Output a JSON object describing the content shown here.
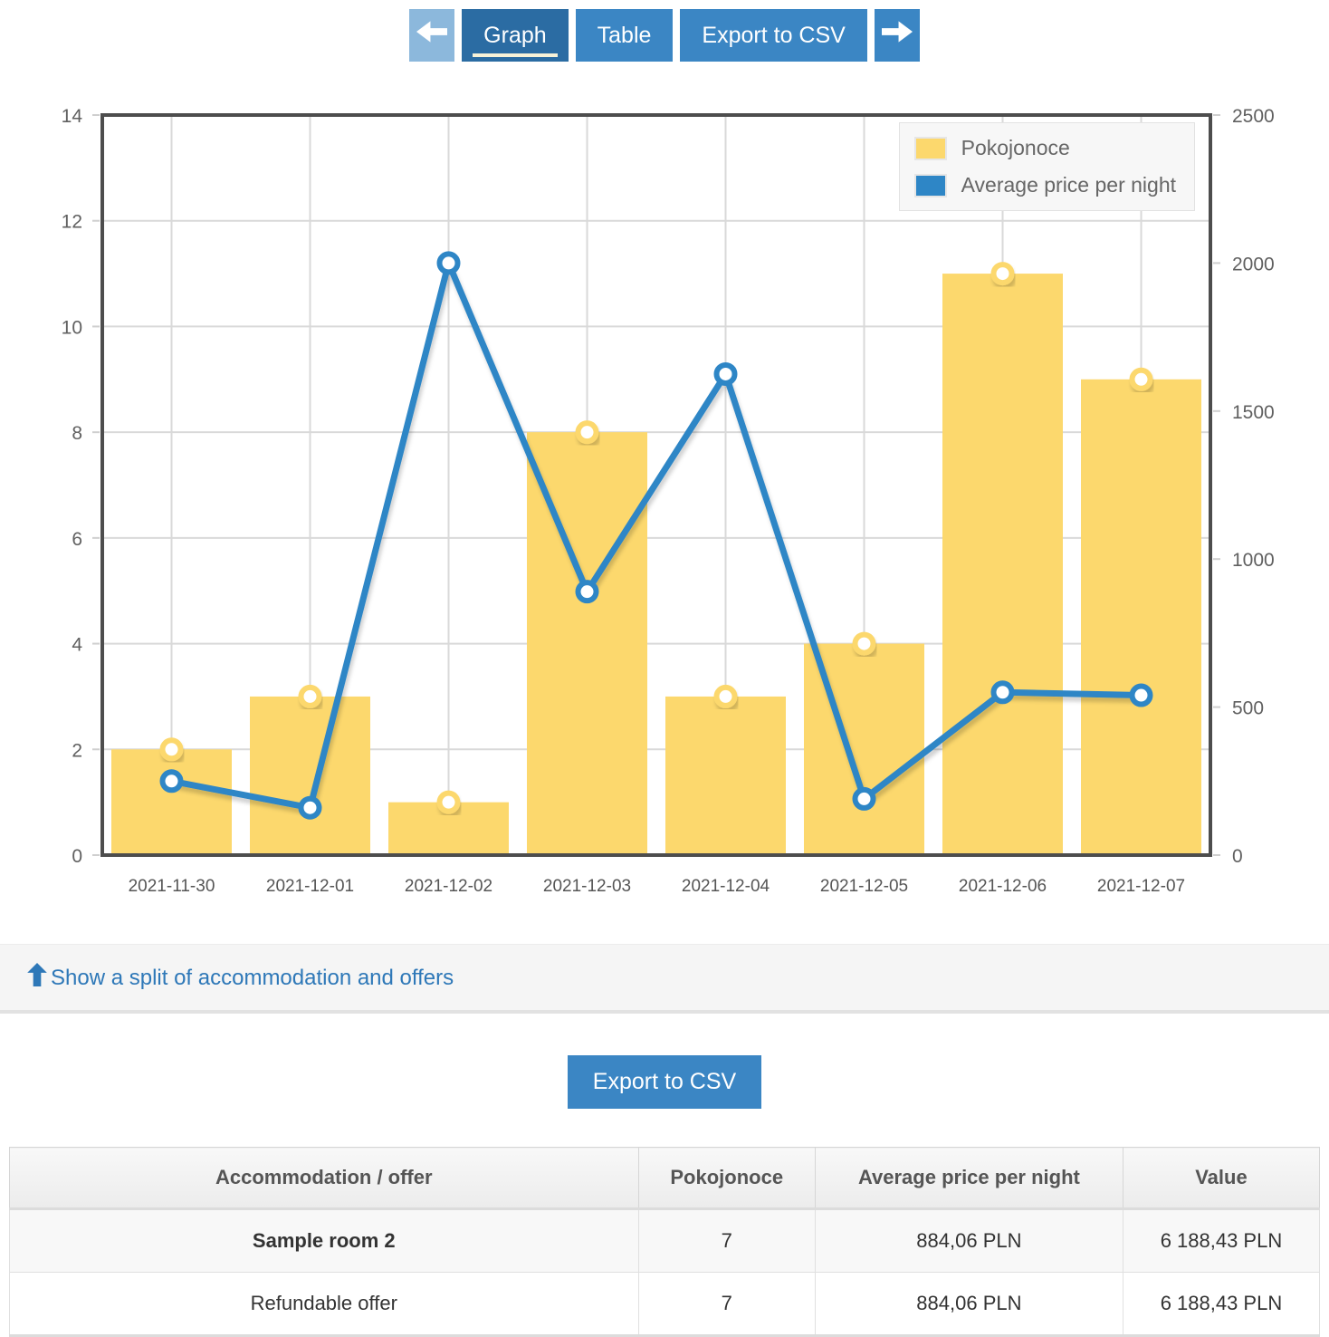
{
  "toolbar": {
    "prev": "left-arrow",
    "graph_label": "Graph",
    "table_label": "Table",
    "export_label": "Export to CSV",
    "next": "right-arrow"
  },
  "chart_data": {
    "type": "bar",
    "subtype": "bar+line combo, dual y-axes",
    "categories": [
      "2021-11-30",
      "2021-12-01",
      "2021-12-02",
      "2021-12-03",
      "2021-12-04",
      "2021-12-05",
      "2021-12-06",
      "2021-12-07"
    ],
    "series": [
      {
        "name": "Pokojonoce",
        "type": "bar",
        "axis": "left",
        "color": "#fcd86d",
        "values": [
          2,
          3,
          1,
          8,
          3,
          4,
          11,
          9
        ]
      },
      {
        "name": "Average price per night",
        "type": "line",
        "axis": "right",
        "color": "#2e86c6",
        "values": [
          250,
          160,
          2000,
          890,
          1625,
          190,
          550,
          540
        ]
      }
    ],
    "left_axis": {
      "min": 0,
      "max": 14,
      "step": 2,
      "ticks": [
        "0",
        "2",
        "4",
        "6",
        "8",
        "10",
        "12",
        "14"
      ]
    },
    "right_axis": {
      "min": 0,
      "max": 2500,
      "step": 500,
      "ticks": [
        "0",
        "500",
        "1000",
        "1500",
        "2000",
        "2500"
      ]
    },
    "grid": true,
    "legend_position": "top-right",
    "title": "",
    "xlabel": "",
    "ylabel": ""
  },
  "split_link": {
    "label": "Show a split of accommodation and offers",
    "icon": "up-arrow"
  },
  "export_section": {
    "button_label": "Export to CSV"
  },
  "table": {
    "headers": [
      "Accommodation / offer",
      "Pokojonoce",
      "Average price per night",
      "Value"
    ],
    "rows": [
      {
        "name": "Sample room 2",
        "bold": true,
        "pokojonoce": "7",
        "avg_price": "884,06 PLN",
        "value": "6 188,43 PLN"
      },
      {
        "name": "Refundable offer",
        "bold": false,
        "pokojonoce": "7",
        "avg_price": "884,06 PLN",
        "value": "6 188,43 PLN"
      }
    ]
  },
  "colors": {
    "button_blue": "#3b86c4",
    "active_tab_blue": "#2b6ca3",
    "disabled_arrow_blue": "#8cb8dc",
    "active_tab_underline": "#f7f2d8",
    "bar_yellow": "#fcd86d",
    "line_blue": "#2e86c6",
    "link_blue": "#2e78b8",
    "plot_frame": "#4d4d4d",
    "gridline": "#d9d9d9"
  }
}
